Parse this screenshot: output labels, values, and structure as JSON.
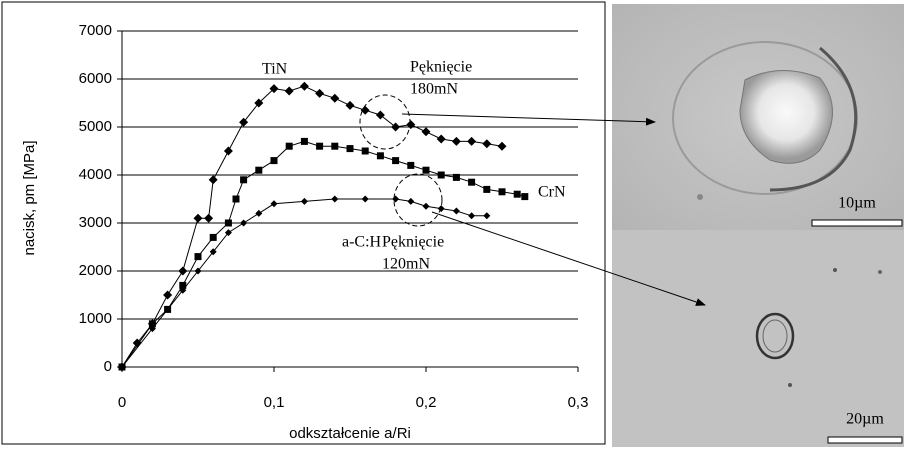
{
  "chart_data": {
    "type": "line",
    "xlabel": "odkształcenie a/Ri",
    "ylabel": "nacisk, pm [MPa]",
    "xlim": [
      0,
      0.3
    ],
    "xticks": [
      0,
      {
        "value": 0.1,
        "label": "0,1"
      },
      {
        "value": 0.2,
        "label": "0,2"
      },
      {
        "value": 0.3,
        "label": "0,3"
      }
    ],
    "ylim": [
      0,
      7000
    ],
    "yticks": [
      0,
      1000,
      2000,
      3000,
      4000,
      5000,
      6000,
      7000
    ],
    "grid": true,
    "series": [
      {
        "name": "TiN",
        "color": "#000000",
        "marker": "diamond",
        "x": [
          0,
          0.01,
          0.02,
          0.03,
          0.04,
          0.05,
          0.057,
          0.06,
          0.07,
          0.08,
          0.09,
          0.1,
          0.11,
          0.12,
          0.13,
          0.14,
          0.15,
          0.16,
          0.17,
          0.18,
          0.19,
          0.2,
          0.21,
          0.22,
          0.23,
          0.24,
          0.25
        ],
        "values": [
          0,
          500,
          900,
          1500,
          2000,
          3100,
          3100,
          3900,
          4500,
          5100,
          5500,
          5800,
          5750,
          5850,
          5700,
          5600,
          5450,
          5350,
          5250,
          5000,
          5050,
          4900,
          4750,
          4700,
          4700,
          4650,
          4600
        ]
      },
      {
        "name": "CrN",
        "color": "#000000",
        "marker": "square",
        "x": [
          0,
          0.02,
          0.03,
          0.04,
          0.05,
          0.06,
          0.07,
          0.075,
          0.08,
          0.09,
          0.1,
          0.11,
          0.12,
          0.13,
          0.14,
          0.15,
          0.16,
          0.17,
          0.18,
          0.19,
          0.2,
          0.21,
          0.22,
          0.23,
          0.24,
          0.25,
          0.26,
          0.265
        ],
        "values": [
          0,
          900,
          1200,
          1700,
          2300,
          2700,
          3000,
          3500,
          3900,
          4100,
          4300,
          4600,
          4700,
          4600,
          4600,
          4550,
          4500,
          4400,
          4300,
          4200,
          4100,
          4000,
          3950,
          3850,
          3700,
          3650,
          3600,
          3550
        ]
      },
      {
        "name": "a-C:H",
        "color": "#000000",
        "marker": "diamond",
        "x": [
          0,
          0.02,
          0.03,
          0.04,
          0.05,
          0.06,
          0.07,
          0.08,
          0.09,
          0.1,
          0.12,
          0.14,
          0.16,
          0.18,
          0.19,
          0.2,
          0.21,
          0.22,
          0.23,
          0.24
        ],
        "values": [
          0,
          800,
          1200,
          1600,
          2000,
          2400,
          2800,
          3000,
          3200,
          3400,
          3450,
          3500,
          3500,
          3500,
          3450,
          3350,
          3300,
          3250,
          3150,
          3150
        ]
      }
    ],
    "annotations": [
      {
        "lines": [
          "Pęknięcie",
          "180mN"
        ]
      },
      {
        "lines": [
          "Pęknięcie",
          "120mN"
        ]
      }
    ]
  },
  "images": [
    {
      "scale_label": "10µm"
    },
    {
      "scale_label": "20µm"
    }
  ]
}
